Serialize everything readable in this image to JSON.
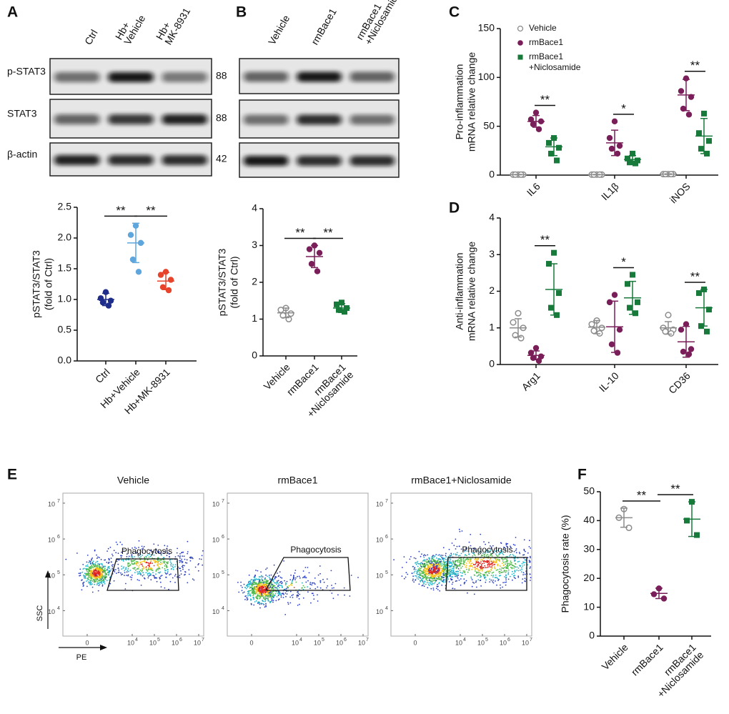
{
  "chart_data": [
    {
      "type": "blot",
      "panel": "A",
      "lanes": [
        "Ctrl",
        [
          "Hb+",
          "Vehicle"
        ],
        [
          "Hb+",
          "MK-8931"
        ]
      ],
      "rows": [
        "p-STAT3",
        "STAT3",
        "β-actin"
      ],
      "sizes": [
        88,
        88,
        42
      ]
    },
    {
      "type": "blot",
      "panel": "B",
      "lanes": [
        "Vehicle",
        "rmBace1",
        [
          "rmBace1",
          "+Niclosamide"
        ]
      ]
    },
    {
      "type": "dotplot",
      "ylabel": [
        "pSTAT3/STAT3",
        "(fold of Ctrl)"
      ],
      "categories": [
        "Ctrl",
        "Hb+Vehicle",
        "Hb+MK-8931"
      ],
      "ylim": [
        0,
        2.5
      ],
      "yticks": [
        {
          "value": 0,
          "label": "0.0"
        },
        0.5,
        {
          "value": 1,
          "label": "1.0"
        },
        1.5,
        {
          "value": 2,
          "label": "2.0"
        },
        2.5
      ],
      "series": [
        {
          "colors": [
            "#1f2d8a",
            "#5ea6dc",
            "#e8432b"
          ],
          "marker": "circle",
          "values": [
            1.0,
            1.92,
            1.3
          ],
          "errors": [
            0.1,
            0.32,
            0.14
          ],
          "points": [
            [
              1.12,
              1.02,
              0.98,
              0.95,
              0.9
            ],
            [
              2.2,
              2.05,
              1.92,
              1.65,
              1.45
            ],
            [
              1.45,
              1.4,
              1.32,
              1.2,
              1.15
            ]
          ]
        }
      ],
      "annotations": [
        {
          "text": "**",
          "categories": [
            0,
            1
          ]
        },
        {
          "text": "**",
          "categories": [
            1,
            2
          ]
        }
      ]
    },
    {
      "type": "dotplot",
      "ylabel": [
        "pSTAT3/STAT3",
        "(fold of Ctrl)"
      ],
      "categories": [
        "Vehicle",
        "rmBace1",
        [
          "rmBace1",
          "+Niclosamide"
        ]
      ],
      "ylim": [
        0,
        4
      ],
      "yticks": [
        0,
        1,
        2,
        3,
        4
      ],
      "series": [
        {
          "colors": [
            "#8c8c8c",
            "#7a1e5a",
            "#177a3a"
          ],
          "markers": [
            "open-circle",
            "circle",
            "square"
          ],
          "values": [
            1.17,
            2.7,
            1.3
          ],
          "errors": [
            0.13,
            0.3,
            0.12
          ],
          "points": [
            [
              1.3,
              1.25,
              1.15,
              1.1,
              1.0
            ],
            [
              3.0,
              2.9,
              2.8,
              2.5,
              2.3
            ],
            [
              1.45,
              1.4,
              1.3,
              1.25,
              1.2
            ]
          ]
        }
      ],
      "annotations": [
        {
          "text": "**",
          "categories": [
            0,
            1
          ]
        },
        {
          "text": "**",
          "categories": [
            1,
            2
          ]
        }
      ]
    },
    {
      "type": "dotplot",
      "panel": "C",
      "ylabel": [
        "Pro-inflammation",
        "mRNA relative change"
      ],
      "categories": [
        "IL6",
        "IL1β",
        "iNOS"
      ],
      "ylim": [
        0,
        150
      ],
      "yticks": [
        0,
        50,
        100,
        150
      ],
      "series": [
        {
          "name": "Vehicle",
          "color": "#8c8c8c",
          "marker": "open-circle",
          "values": [
            0.5,
            0.5,
            1
          ],
          "errors": [
            0.2,
            0.2,
            0.3
          ],
          "points": [
            [
              0.5,
              0.5,
              0.5,
              0.5,
              0.5
            ],
            [
              0.5,
              0.5,
              0.5,
              0.5,
              0.5
            ],
            [
              1,
              1,
              1,
              1,
              1
            ]
          ]
        },
        {
          "name": "rmBace1",
          "color": "#7a1e5a",
          "marker": "circle",
          "values": [
            55,
            33,
            82
          ],
          "errors": [
            6,
            13,
            16
          ],
          "points": [
            [
              64,
              57,
              55,
              52,
              47
            ],
            [
              55,
              38,
              30,
              27,
              22
            ],
            [
              99,
              86,
              80,
              68,
              62
            ]
          ]
        },
        {
          "name": [
            "rmBace1",
            "+Niclosamide"
          ],
          "color": "#177a3a",
          "marker": "square",
          "values": [
            29,
            16,
            40
          ],
          "errors": [
            9,
            4,
            18
          ],
          "points": [
            [
              38,
              33,
              28,
              22,
              15
            ],
            [
              22,
              17,
              15,
              13,
              12
            ],
            [
              63,
              43,
              35,
              27,
              22
            ]
          ]
        }
      ],
      "annotations": [
        {
          "text": "**",
          "category": 0,
          "series": [
            1,
            2
          ]
        },
        {
          "text": "*",
          "category": 1,
          "series": [
            1,
            2
          ]
        },
        {
          "text": "**",
          "category": 2,
          "series": [
            1,
            2
          ]
        }
      ]
    },
    {
      "type": "dotplot",
      "panel": "D",
      "ylabel": [
        "Anti-inflammation",
        "mRNA relative change"
      ],
      "categories": [
        "Arg1",
        "IL-10",
        "CD36"
      ],
      "ylim": [
        0,
        4
      ],
      "yticks": [
        0,
        1,
        2,
        3,
        4
      ],
      "series": [
        {
          "color": "#8c8c8c",
          "marker": "open-circle",
          "values": [
            1.0,
            1.02,
            1.0
          ],
          "errors": [
            0.25,
            0.18,
            0.17
          ],
          "points": [
            [
              1.4,
              1.15,
              1.0,
              0.8,
              0.72
            ],
            [
              1.2,
              1.1,
              1.0,
              0.92,
              0.85
            ],
            [
              1.35,
              1.0,
              0.95,
              0.9,
              0.85
            ]
          ]
        },
        {
          "color": "#7a1e5a",
          "marker": "circle",
          "values": [
            0.25,
            1.03,
            0.62
          ],
          "errors": [
            0.12,
            0.7,
            0.42
          ],
          "points": [
            [
              0.45,
              0.32,
              0.22,
              0.18,
              0.1
            ],
            [
              1.9,
              1.7,
              0.95,
              0.55,
              0.32
            ],
            [
              1.1,
              0.95,
              0.42,
              0.35,
              0.28
            ]
          ]
        },
        {
          "color": "#177a3a",
          "marker": "square",
          "values": [
            2.05,
            1.82,
            1.55
          ],
          "errors": [
            0.7,
            0.45,
            0.5
          ],
          "points": [
            [
              3.05,
              2.75,
              1.95,
              1.55,
              1.35
            ],
            [
              2.45,
              2.2,
              1.7,
              1.55,
              1.4
            ],
            [
              2.05,
              1.95,
              1.5,
              1.05,
              0.9
            ]
          ]
        }
      ],
      "annotations": [
        {
          "text": "**",
          "category": 0,
          "series": [
            1,
            2
          ]
        },
        {
          "text": "*",
          "category": 1,
          "series": [
            1,
            2
          ]
        },
        {
          "text": "**",
          "category": 2,
          "series": [
            1,
            2
          ]
        }
      ]
    },
    {
      "type": "flow",
      "panel": "E",
      "titles": [
        "Vehicle",
        "rmBace1",
        "rmBace1+Niclosamide"
      ],
      "gate_label": "Phagocytosis",
      "xlabel": "PE",
      "ylabel": "SSC",
      "yscale": "log",
      "ylim": [
        1950,
        19000000
      ],
      "xscale": "biexponential",
      "yticks": [
        {
          "value": 10000,
          "label": "10",
          "exponent": "4"
        },
        {
          "value": 100000,
          "label": "10",
          "exponent": "5"
        },
        {
          "value": 1000000,
          "label": "10",
          "exponent": "6"
        },
        {
          "value": 10000000,
          "label": "10",
          "exponent": "7"
        }
      ],
      "xticks": [
        0,
        {
          "value": 10000,
          "label": "10",
          "exponent": "4"
        },
        {
          "value": 100000,
          "label": "10",
          "exponent": "5"
        },
        {
          "value": 1000000,
          "label": "10",
          "exponent": "6"
        },
        {
          "value": 10000000,
          "label": "10",
          "exponent": "7"
        }
      ]
    },
    {
      "type": "dotplot",
      "panel": "F",
      "ylabel": "Phagocytosis  rate (%)",
      "categories": [
        "Vehicle",
        "rmBace1",
        [
          "rmBace1",
          "+Niclosamide"
        ]
      ],
      "ylim": [
        0,
        50
      ],
      "yticks": [
        0,
        10,
        20,
        30,
        40,
        50
      ],
      "series": [
        {
          "colors": [
            "#8c8c8c",
            "#7a1e5a",
            "#177a3a"
          ],
          "markers": [
            "open-circle",
            "circle",
            "square"
          ],
          "values": [
            41,
            14.8,
            40.5
          ],
          "errors": [
            3.3,
            1.8,
            6
          ],
          "points": [
            [
              44,
              41,
              37.5
            ],
            [
              16.5,
              14.5,
              13
            ],
            [
              46.5,
              40,
              35
            ]
          ]
        }
      ],
      "annotations": [
        {
          "text": "**",
          "categories": [
            0,
            1
          ]
        },
        {
          "text": "**",
          "categories": [
            1,
            2
          ]
        }
      ]
    }
  ]
}
